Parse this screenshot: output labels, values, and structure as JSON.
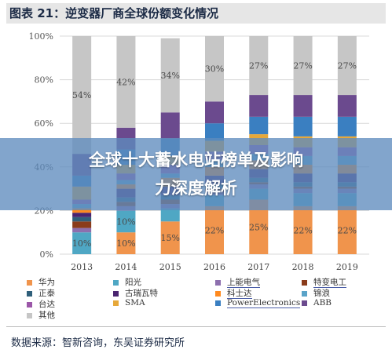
{
  "figure": {
    "title": "图表 21：逆变器厂商全球份额变化情况",
    "source": "数据来源：智新咨询，东吴证券研究所"
  },
  "overlay": {
    "line1": "全球十大蓄水电站榜单及影响",
    "line2": "力深度解析"
  },
  "chart_data": {
    "type": "bar",
    "stacked": true,
    "normalized": true,
    "categories": [
      "2013",
      "2014",
      "2015",
      "2016",
      "2017",
      "2018",
      "2019"
    ],
    "ylim": [
      0,
      100
    ],
    "yticks": [
      "0%",
      "20%",
      "40%",
      "60%",
      "80%",
      "100%"
    ],
    "series": [
      {
        "name": "华为",
        "color": "#f0944c",
        "values": [
          0,
          10,
          15,
          22,
          25,
          22,
          22
        ]
      },
      {
        "name": "阳光",
        "color": "#4fa7c4",
        "values": [
          10,
          10,
          6,
          5,
          5,
          6,
          6
        ]
      },
      {
        "name": "上能电气",
        "color": "#8d6fae",
        "values": [
          2,
          2,
          2,
          2,
          2,
          2,
          2
        ]
      },
      {
        "name": "特变电工",
        "color": "#8a3c1b",
        "values": [
          3,
          2,
          2,
          1,
          1,
          1,
          1
        ]
      },
      {
        "name": "正泰",
        "color": "#2f5f7a",
        "values": [
          2,
          2,
          2,
          2,
          2,
          2,
          2
        ]
      },
      {
        "name": "古瑞瓦特",
        "color": "#4a2470",
        "values": [
          2,
          4,
          4,
          4,
          4,
          4,
          4
        ]
      },
      {
        "name": "科士达",
        "color": "#ff8a1f",
        "values": [
          2,
          2,
          4,
          4,
          4,
          4,
          4
        ]
      },
      {
        "name": "锦浪",
        "color": "#5aa3c8",
        "values": [
          2,
          2,
          2,
          3,
          3,
          4,
          4
        ]
      },
      {
        "name": "台达",
        "color": "#9b57a8",
        "values": [
          2,
          3,
          4,
          4,
          4,
          4,
          4
        ]
      },
      {
        "name": "SMA",
        "color": "#e6a83a",
        "values": [
          6,
          4,
          4,
          5,
          5,
          5,
          5
        ]
      },
      {
        "name": "PowerElectronics",
        "color": "#3a7fc1",
        "values": [
          5,
          7,
          8,
          8,
          8,
          9,
          9
        ]
      },
      {
        "name": "ABB",
        "color": "#6b4a8e",
        "values": [
          10,
          10,
          12,
          10,
          10,
          10,
          10
        ]
      },
      {
        "name": "其他",
        "color": "#c6c6c6",
        "values": [
          54,
          42,
          34,
          30,
          27,
          27,
          27
        ]
      }
    ],
    "data_labels": [
      {
        "series": "华为",
        "values": [
          "",
          "10%",
          "15%",
          "22%",
          "25%",
          "22%",
          "22%"
        ]
      },
      {
        "series": "阳光",
        "values": [
          "10%",
          "10%",
          "",
          "",
          "",
          "",
          ""
        ]
      },
      {
        "series": "其他",
        "values": [
          "54%",
          "42%",
          "34%",
          "30%",
          "27%",
          "27%",
          "27%"
        ]
      }
    ]
  }
}
